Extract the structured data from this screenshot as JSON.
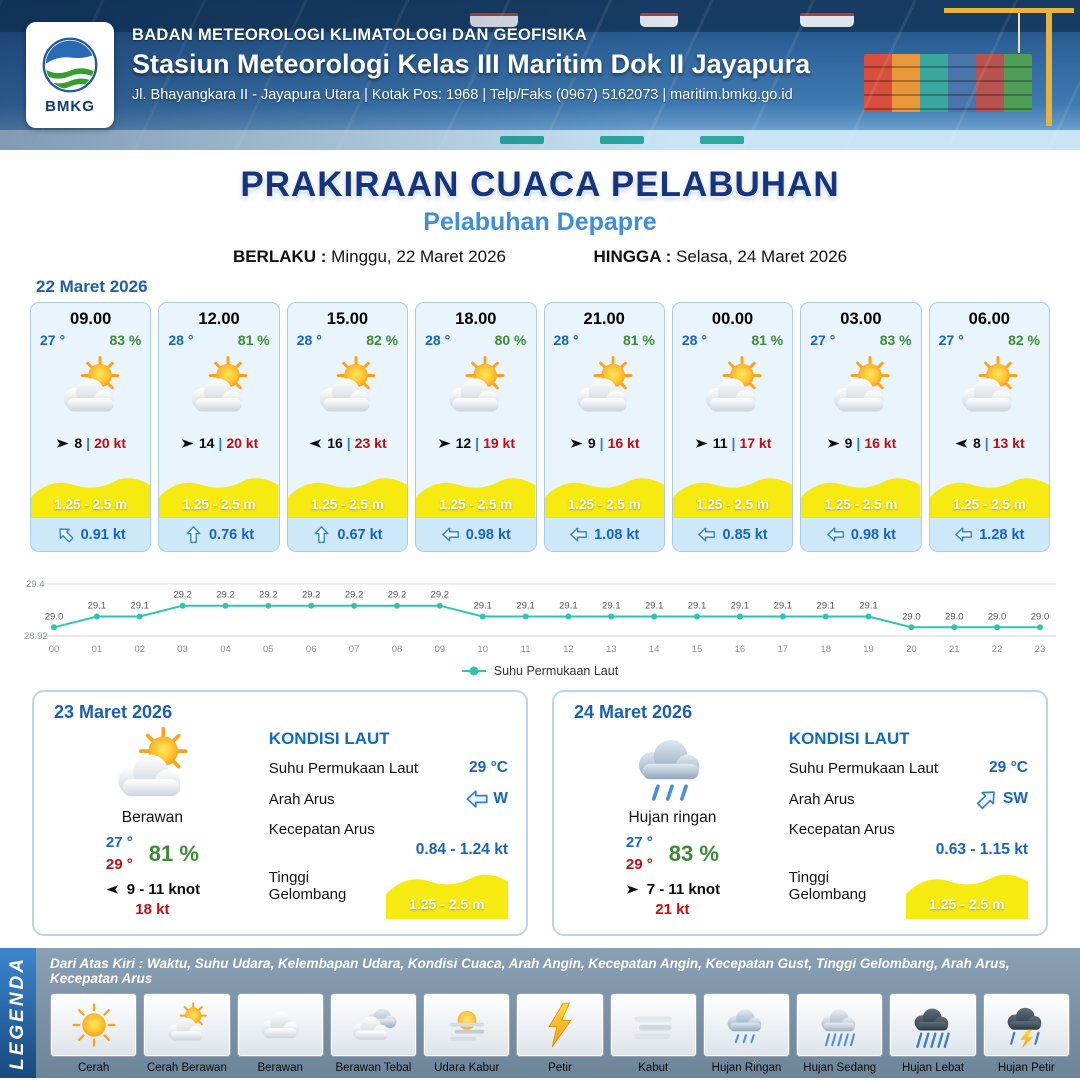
{
  "header": {
    "agency": "BADAN METEOROLOGI KLIMATOLOGI DAN GEOFISIKA",
    "station": "Stasiun Meteorologi Kelas III Maritim Dok II Jayapura",
    "address": "Jl. Bhayangkara II - Jayapura Utara | Kotak Pos: 1968 | Telp/Faks (0967) 5162073 | maritim.bmkg.go.id",
    "logo_text": "BMKG"
  },
  "title": {
    "main": "PRAKIRAAN CUACA PELABUHAN",
    "port": "Pelabuhan Depapre",
    "berlaku_label": "BERLAKU :",
    "berlaku_value": "Minggu, 22 Maret 2026",
    "hingga_label": "HINGGA :",
    "hingga_value": "Selasa, 24 Maret 2026"
  },
  "forecast_date": "22 Maret 2026",
  "labels": {
    "wind_sep": "|"
  },
  "colors": {
    "accent_blue": "#1565c0",
    "accent_green": "#3d8b37",
    "accent_red": "#c40e0e",
    "wave_yellow": "#f6ea10",
    "line_teal": "#2fc4b2",
    "title_navy": "#15357e",
    "port_blue": "#3e8fd9"
  },
  "hourly": [
    {
      "time": "09.00",
      "temp": "27 °",
      "rh": "83 %",
      "icon": "sun-cloud",
      "wind_dir_deg": 0,
      "wind": "8",
      "gust": "20 kt",
      "wave": "1.25 - 2.5 m",
      "cur_dir_deg": 45,
      "current": "0.91 kt"
    },
    {
      "time": "12.00",
      "temp": "28 °",
      "rh": "81 %",
      "icon": "sun-cloud",
      "wind_dir_deg": 0,
      "wind": "14",
      "gust": "20 kt",
      "wave": "1.25 - 2.5 m",
      "cur_dir_deg": 90,
      "current": "0.76 kt"
    },
    {
      "time": "15.00",
      "temp": "28 °",
      "rh": "82 %",
      "icon": "sun-cloud",
      "wind_dir_deg": 180,
      "wind": "16",
      "gust": "23 kt",
      "wave": "1.25 - 2.5 m",
      "cur_dir_deg": 90,
      "current": "0.67 kt"
    },
    {
      "time": "18.00",
      "temp": "28 °",
      "rh": "80 %",
      "icon": "sun-cloud",
      "wind_dir_deg": 0,
      "wind": "12",
      "gust": "19 kt",
      "wave": "1.25 - 2.5 m",
      "cur_dir_deg": 0,
      "current": "0.98 kt"
    },
    {
      "time": "21.00",
      "temp": "28 °",
      "rh": "81 %",
      "icon": "sun-cloud",
      "wind_dir_deg": 0,
      "wind": "9",
      "gust": "16 kt",
      "wave": "1.25 - 2.5 m",
      "cur_dir_deg": 0,
      "current": "1.08 kt"
    },
    {
      "time": "00.00",
      "temp": "28 °",
      "rh": "81 %",
      "icon": "sun-cloud",
      "wind_dir_deg": 0,
      "wind": "11",
      "gust": "17 kt",
      "wave": "1.25 - 2.5 m",
      "cur_dir_deg": 0,
      "current": "0.85 kt"
    },
    {
      "time": "03.00",
      "temp": "27 °",
      "rh": "83 %",
      "icon": "sun-cloud",
      "wind_dir_deg": 0,
      "wind": "9",
      "gust": "16 kt",
      "wave": "1.25 - 2.5 m",
      "cur_dir_deg": 0,
      "current": "0.98 kt"
    },
    {
      "time": "06.00",
      "temp": "27 °",
      "rh": "82 %",
      "icon": "sun-cloud",
      "wind_dir_deg": 180,
      "wind": "8",
      "gust": "13 kt",
      "wave": "1.25 - 2.5 m",
      "cur_dir_deg": 0,
      "current": "1.28 kt"
    }
  ],
  "chart_data": {
    "type": "line",
    "title": "",
    "series_name": "Suhu Permukaan Laut",
    "x": [
      "00",
      "01",
      "02",
      "03",
      "04",
      "05",
      "06",
      "07",
      "08",
      "09",
      "10",
      "11",
      "12",
      "13",
      "14",
      "15",
      "16",
      "17",
      "18",
      "19",
      "20",
      "21",
      "22",
      "23"
    ],
    "values": [
      29.0,
      29.1,
      29.1,
      29.2,
      29.2,
      29.2,
      29.2,
      29.2,
      29.2,
      29.2,
      29.1,
      29.1,
      29.1,
      29.1,
      29.1,
      29.1,
      29.1,
      29.1,
      29.1,
      29.1,
      29.0,
      29.0,
      29.0,
      29.0
    ],
    "ylim": [
      28.92,
      29.4
    ],
    "y_ticks": [
      "29.4",
      "28.92"
    ],
    "line_color": "#2fc4b2",
    "grid": true,
    "legend_position": "bottom"
  },
  "daily": [
    {
      "date": "23 Maret 2026",
      "icon": "sun-cloud",
      "condition": "Berawan",
      "temp_min": "27 °",
      "temp_max": "29 °",
      "rh": "81 %",
      "wind_dir_deg": 180,
      "wind": "9 - 11 knot",
      "gust": "18 kt",
      "sea": {
        "title": "KONDISI LAUT",
        "sst_label": "Suhu Permukaan Laut",
        "sst": "29 °C",
        "dir_label": "Arah Arus",
        "dir": "W",
        "dir_deg": 0,
        "speed_label": "Kecepatan Arus",
        "speed": "0.84 - 1.24 kt",
        "wave_label": "Tinggi Gelombang",
        "wave": "1.25 - 2.5 m"
      }
    },
    {
      "date": "24 Maret 2026",
      "icon": "rain-light",
      "condition": "Hujan ringan",
      "temp_min": "27 °",
      "temp_max": "29 °",
      "rh": "83 %",
      "wind_dir_deg": 0,
      "wind": "7 - 11 knot",
      "gust": "21 kt",
      "sea": {
        "title": "KONDISI LAUT",
        "sst_label": "Suhu Permukaan Laut",
        "sst": "29 °C",
        "dir_label": "Arah Arus",
        "dir": "SW",
        "dir_deg": 135,
        "speed_label": "Kecepatan Arus",
        "speed": "0.63 - 1.15 kt",
        "wave_label": "Tinggi Gelombang",
        "wave": "1.25 - 2.5 m"
      }
    }
  ],
  "legend": {
    "title": "LEGENDA",
    "caption": "Dari Atas Kiri : Waktu, Suhu Udara, Kelembapan Udara, Kondisi Cuaca, Arah Angin, Kecepatan Angin, Kecepatan Gust, Tinggi Gelombang, Arah Arus, Kecepatan Arus",
    "items": [
      {
        "label": "Cerah",
        "icon": "sun"
      },
      {
        "label": "Cerah Berawan",
        "icon": "sun-cloud"
      },
      {
        "label": "Berawan",
        "icon": "cloud"
      },
      {
        "label": "Berawan Tebal",
        "icon": "clouds"
      },
      {
        "label": "Udara Kabur",
        "icon": "haze"
      },
      {
        "label": "Petir",
        "icon": "bolt"
      },
      {
        "label": "Kabut",
        "icon": "fog"
      },
      {
        "label": "Hujan Ringan",
        "icon": "rain-light"
      },
      {
        "label": "Hujan Sedang",
        "icon": "rain-medium"
      },
      {
        "label": "Hujan Lebat",
        "icon": "rain-heavy"
      },
      {
        "label": "Hujan Petir",
        "icon": "storm"
      }
    ]
  }
}
